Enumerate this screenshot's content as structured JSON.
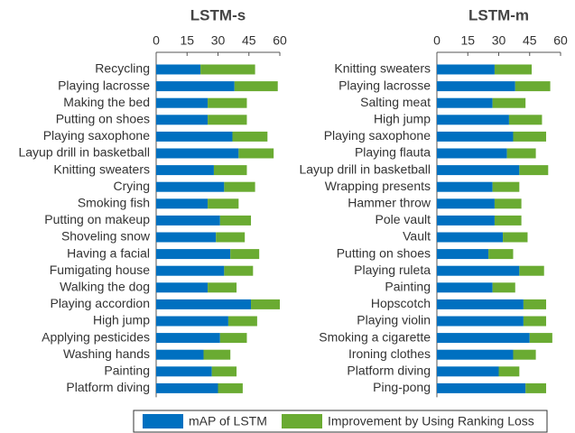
{
  "chart_data": [
    {
      "type": "stacked-bar-horizontal",
      "title": "LSTM-s",
      "categories": [
        "Recycling",
        "Playing lacrosse",
        "Making the bed",
        "Putting on shoes",
        "Playing saxophone",
        "Layup drill in basketball",
        "Knitting sweaters",
        "Crying",
        "Smoking fish",
        "Putting on makeup",
        "Shoveling snow",
        "Having a facial",
        "Fumigating house",
        "Walking the dog",
        "Playing accordion",
        "High jump",
        "Applying pesticides",
        "Washing hands",
        "Painting",
        "Platform diving"
      ],
      "series": [
        {
          "name": "mAP of LSTM",
          "color": "#0070c0",
          "values": [
            21.5,
            38,
            25,
            25,
            37,
            40,
            28,
            33,
            25,
            31,
            29,
            36,
            33,
            25,
            46,
            35,
            31,
            23,
            27,
            30
          ]
        },
        {
          "name": "Improvement by Using Ranking Loss",
          "color": "#6aab32",
          "values": [
            26.5,
            21,
            19,
            19,
            17,
            17,
            16,
            15,
            15,
            15,
            14,
            14,
            14,
            14,
            14,
            14,
            13,
            13,
            12,
            12
          ]
        }
      ],
      "xlim": [
        0,
        60
      ],
      "xticks": [
        0,
        15,
        30,
        45,
        60
      ]
    },
    {
      "type": "stacked-bar-horizontal",
      "title": "LSTM-m",
      "categories": [
        "Knitting sweaters",
        "Playing lacrosse",
        "Salting meat",
        "High jump",
        "Playing saxophone",
        "Playing flauta",
        "Layup drill in basketball",
        "Wrapping presents",
        "Hammer throw",
        "Pole vault",
        "Vault",
        "Putting on shoes",
        "Playing ruleta",
        "Painting",
        "Hopscotch",
        "Playing violin",
        "Smoking a cigarette",
        "Ironing clothes",
        "Platform diving",
        "Ping-pong"
      ],
      "series": [
        {
          "color": "#0070c0",
          "values": [
            28,
            38,
            27,
            35,
            37,
            34,
            40,
            27,
            28,
            28,
            32,
            25,
            40,
            27,
            42,
            42,
            45,
            37,
            30,
            43
          ]
        },
        {
          "color": "#6aab32",
          "values": [
            18,
            17,
            16,
            16,
            16,
            14,
            14,
            13,
            13,
            13,
            12,
            12,
            12,
            11,
            11,
            11,
            11,
            11,
            10,
            10
          ]
        }
      ],
      "xlim": [
        0,
        60
      ],
      "xticks": [
        0,
        15,
        30,
        45,
        60
      ]
    }
  ]
}
